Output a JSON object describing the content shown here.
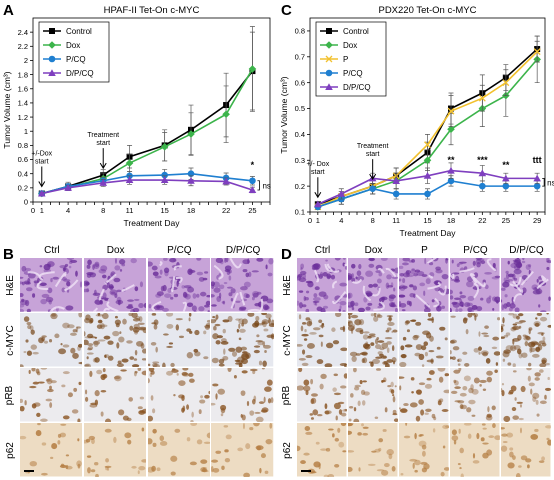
{
  "panels": {
    "A": {
      "letter": "A"
    },
    "B": {
      "letter": "B",
      "columns": [
        "Ctrl",
        "Dox",
        "P/CQ",
        "D/P/CQ"
      ],
      "rows": [
        "H&E",
        "c-MYC",
        "pRB",
        "p62"
      ]
    },
    "C": {
      "letter": "C"
    },
    "D": {
      "letter": "D",
      "columns": [
        "Ctrl",
        "Dox",
        "P",
        "P/CQ",
        "D/P/CQ"
      ],
      "rows": [
        "H&E",
        "c-MYC",
        "pRB",
        "p62"
      ]
    }
  },
  "colors": {
    "control": "#000000",
    "dox": "#3cb44b",
    "p": "#f2c12e",
    "pcq": "#1f7fd0",
    "dpcq": "#7f3fbf",
    "he_stain": "#8e4bb8",
    "dab_stain": "#9a5a20",
    "hema_counterstain": "#b8c3dc"
  },
  "chart_data": [
    {
      "type": "line",
      "title": "HPAF-II Tet-On c-MYC",
      "xlabel": "Treatment Day",
      "ylabel": "Tumor Volume (cm³)",
      "xlim": [
        0,
        27
      ],
      "ylim": [
        0,
        2.6
      ],
      "xticks": [
        0,
        1,
        2,
        3,
        4,
        5,
        6,
        7,
        8,
        9,
        10,
        11,
        12,
        13,
        14,
        15,
        16,
        17,
        18,
        19,
        20,
        21,
        22,
        23,
        24,
        25,
        26,
        27
      ],
      "xtick_labels": [
        "0",
        "1",
        "",
        "",
        "4",
        "",
        "",
        "",
        "8",
        "",
        "",
        "11",
        "",
        "",
        "",
        "15",
        "",
        "",
        "18",
        "",
        "",
        "",
        "22",
        "",
        "",
        "25",
        "",
        ""
      ],
      "yticks": [
        0,
        0.2,
        0.4,
        0.6,
        0.8,
        1.0,
        1.2,
        1.4,
        1.6,
        1.8,
        2.0,
        2.2,
        2.4
      ],
      "ytick_labels": [
        "0",
        "0.2",
        "0.4",
        "0.6",
        "0.8",
        "1",
        "1.2",
        "1.4",
        "1.6",
        "1.8",
        "2",
        "2.2",
        "2.4"
      ],
      "grid": false,
      "legend_placement": "top-left",
      "x": [
        1,
        4,
        8,
        11,
        15,
        18,
        22,
        25
      ],
      "series": [
        {
          "name": "Control",
          "key": "control",
          "marker": "square",
          "values": [
            0.12,
            0.22,
            0.38,
            0.64,
            0.8,
            1.02,
            1.37,
            1.85
          ],
          "errors": [
            0.02,
            0.06,
            0.08,
            0.16,
            0.22,
            0.35,
            0.45,
            0.55
          ]
        },
        {
          "name": "Dox",
          "key": "dox",
          "marker": "diamond",
          "values": [
            0.12,
            0.21,
            0.33,
            0.55,
            0.78,
            0.96,
            1.24,
            1.88
          ],
          "errors": [
            0.02,
            0.04,
            0.08,
            0.12,
            0.2,
            0.3,
            0.4,
            0.6
          ]
        },
        {
          "name": "P/CQ",
          "key": "pcq",
          "marker": "circle",
          "values": [
            0.12,
            0.22,
            0.3,
            0.37,
            0.38,
            0.4,
            0.34,
            0.3
          ],
          "errors": [
            0.02,
            0.03,
            0.05,
            0.06,
            0.08,
            0.08,
            0.07,
            0.06
          ]
        },
        {
          "name": "D/P/CQ",
          "key": "dpcq",
          "marker": "triangle",
          "values": [
            0.12,
            0.2,
            0.27,
            0.31,
            0.31,
            0.3,
            0.29,
            0.17
          ],
          "errors": [
            0.02,
            0.03,
            0.05,
            0.06,
            0.06,
            0.07,
            0.05,
            0.04
          ]
        }
      ],
      "annotations": [
        {
          "kind": "arrow",
          "x": 1,
          "text": [
            "+/-Dox",
            "start"
          ]
        },
        {
          "kind": "arrow",
          "x": 8,
          "text": [
            "Treatment",
            "start"
          ]
        },
        {
          "kind": "star",
          "x": 25,
          "y": 0.48,
          "text": "*"
        },
        {
          "kind": "bracket",
          "x": 25,
          "y1": 0.17,
          "y2": 0.3,
          "text": "ns"
        }
      ]
    },
    {
      "type": "line",
      "title": "PDX220 Tet-On c-MYC",
      "xlabel": "Treatment Day",
      "ylabel": "Tumor Volume (cm³)",
      "xlim": [
        0,
        30
      ],
      "ylim": [
        0.1,
        0.85
      ],
      "xticks": [
        0,
        1,
        2,
        3,
        4,
        5,
        6,
        7,
        8,
        9,
        10,
        11,
        12,
        13,
        14,
        15,
        16,
        17,
        18,
        19,
        20,
        21,
        22,
        23,
        24,
        25,
        26,
        27,
        28,
        29,
        30
      ],
      "xtick_labels": [
        "0",
        "1",
        "",
        "",
        "4",
        "",
        "",
        "",
        "8",
        "",
        "",
        "11",
        "",
        "",
        "",
        "15",
        "",
        "",
        "18",
        "",
        "",
        "",
        "22",
        "",
        "",
        "25",
        "",
        "",
        "",
        "29",
        ""
      ],
      "yticks": [
        0.1,
        0.2,
        0.3,
        0.4,
        0.5,
        0.6,
        0.7,
        0.8
      ],
      "ytick_labels": [
        "0.1",
        "0.2",
        "0.3",
        "0.4",
        "0.5",
        "0.6",
        "0.7",
        "0.8"
      ],
      "grid": false,
      "legend_placement": "top-left",
      "x": [
        1,
        4,
        8,
        11,
        15,
        18,
        22,
        25,
        29
      ],
      "series": [
        {
          "name": "Control",
          "key": "control",
          "marker": "square",
          "values": [
            0.13,
            0.16,
            0.2,
            0.24,
            0.33,
            0.5,
            0.56,
            0.62,
            0.73
          ],
          "errors": [
            0.01,
            0.02,
            0.03,
            0.03,
            0.04,
            0.06,
            0.07,
            0.05,
            0.05
          ]
        },
        {
          "name": "Dox",
          "key": "dox",
          "marker": "diamond",
          "values": [
            0.12,
            0.15,
            0.19,
            0.22,
            0.3,
            0.42,
            0.5,
            0.55,
            0.69
          ],
          "errors": [
            0.01,
            0.02,
            0.02,
            0.03,
            0.04,
            0.06,
            0.07,
            0.08,
            0.09
          ]
        },
        {
          "name": "P",
          "key": "p",
          "marker": "cross",
          "values": [
            0.12,
            0.16,
            0.2,
            0.24,
            0.36,
            0.49,
            0.54,
            0.6,
            0.72
          ],
          "errors": [
            0.01,
            0.02,
            0.03,
            0.03,
            0.04,
            0.06,
            0.05,
            0.05,
            0.04
          ]
        },
        {
          "name": "P/CQ",
          "key": "pcq",
          "marker": "circle",
          "values": [
            0.12,
            0.15,
            0.19,
            0.17,
            0.17,
            0.22,
            0.2,
            0.2,
            0.2
          ],
          "errors": [
            0.01,
            0.02,
            0.02,
            0.02,
            0.02,
            0.02,
            0.02,
            0.02,
            0.02
          ]
        },
        {
          "name": "D/P/CQ",
          "key": "dpcq",
          "marker": "triangle",
          "values": [
            0.13,
            0.17,
            0.23,
            0.22,
            0.24,
            0.26,
            0.25,
            0.23,
            0.23
          ],
          "errors": [
            0.01,
            0.02,
            0.02,
            0.03,
            0.03,
            0.03,
            0.03,
            0.02,
            0.02
          ]
        }
      ],
      "annotations": [
        {
          "kind": "arrow",
          "x": 1,
          "text": [
            "+/- Dox",
            "start"
          ]
        },
        {
          "kind": "arrow",
          "x": 8,
          "text": [
            "Treatment",
            "start"
          ]
        },
        {
          "kind": "star",
          "x": 18,
          "y": 0.29,
          "text": "**"
        },
        {
          "kind": "star",
          "x": 22,
          "y": 0.29,
          "text": "***"
        },
        {
          "kind": "star",
          "x": 25,
          "y": 0.27,
          "text": "**"
        },
        {
          "kind": "star",
          "x": 29,
          "y": 0.29,
          "text": "ttt"
        },
        {
          "kind": "bracket",
          "x": 29,
          "y1": 0.2,
          "y2": 0.23,
          "text": "ns"
        }
      ]
    }
  ]
}
